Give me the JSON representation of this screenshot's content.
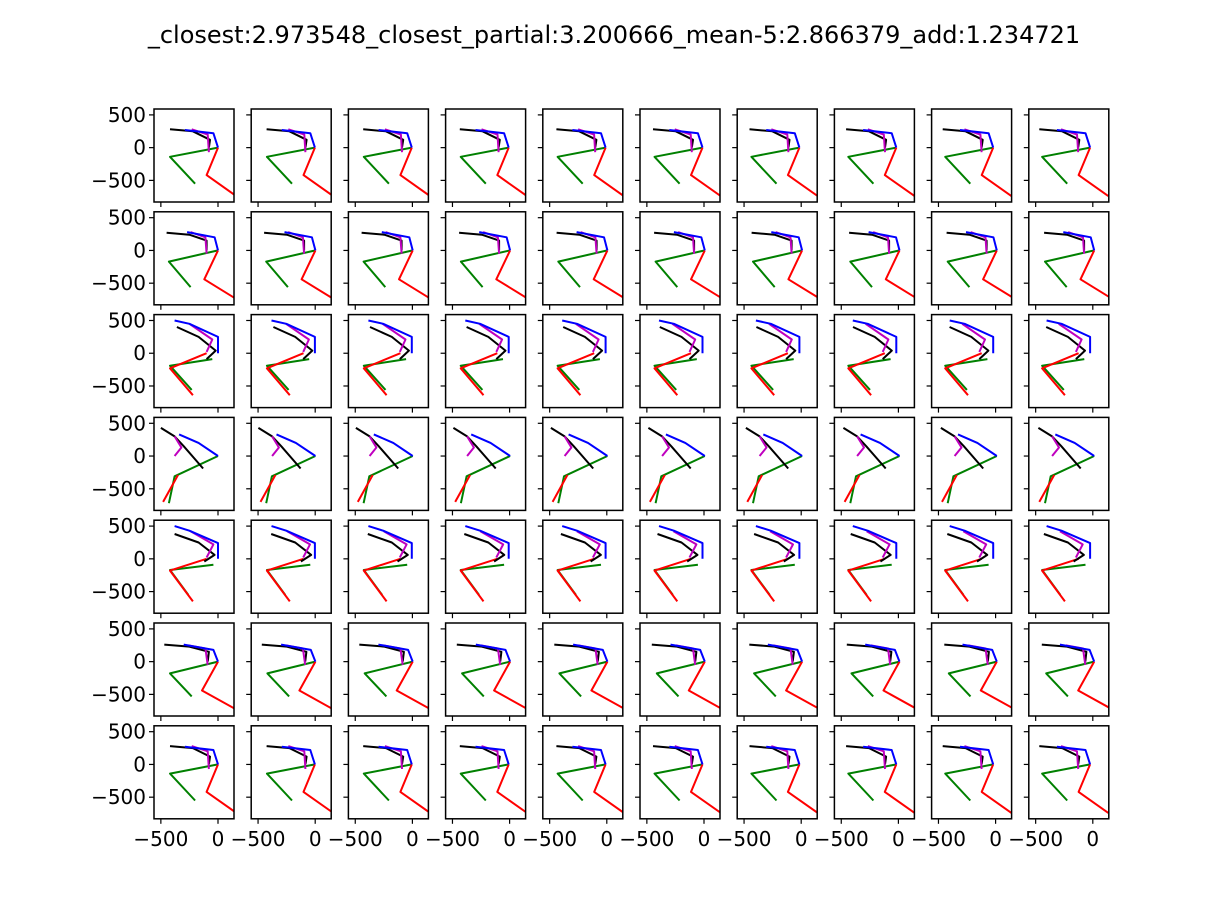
{
  "title": "_closest:2.973548_closest_partial:3.200666_mean-5:2.866379_add:1.234721",
  "chart_data": {
    "type": "line",
    "grid_rows": 7,
    "grid_cols": 10,
    "xlim": [
      -560,
      140
    ],
    "ylim": [
      -830,
      590
    ],
    "xticks": [
      {
        "value": -500,
        "label": "−500"
      },
      {
        "value": 0,
        "label": "0"
      }
    ],
    "yticks": [
      {
        "value": 500,
        "label": "500"
      },
      {
        "value": 0,
        "label": "0"
      },
      {
        "value": -500,
        "label": "−500"
      }
    ],
    "colors": {
      "left_leg": "#ff0000",
      "right_leg": "#008000",
      "torso": "#000000",
      "left_arm": "#bf00bf",
      "right_arm": "#0000ff"
    },
    "row_poses": [
      {
        "left_leg": [
          [
            0,
            0
          ],
          [
            -100,
            -420
          ],
          [
            160,
            -740
          ]
        ],
        "right_leg": [
          [
            0,
            0
          ],
          [
            -420,
            -140
          ],
          [
            -200,
            -550
          ]
        ],
        "torso": [
          [
            -80,
            0
          ],
          [
            -70,
            120
          ],
          [
            -220,
            250
          ],
          [
            -420,
            280
          ]
        ],
        "left_arm": [
          [
            -80,
            -70
          ],
          [
            -90,
            200
          ],
          [
            -230,
            280
          ]
        ],
        "right_arm": [
          [
            0,
            0
          ],
          [
            -40,
            220
          ],
          [
            -290,
            270
          ]
        ]
      },
      {
        "left_leg": [
          [
            0,
            0
          ],
          [
            -120,
            -440
          ],
          [
            150,
            -730
          ]
        ],
        "right_leg": [
          [
            0,
            0
          ],
          [
            -430,
            -170
          ],
          [
            -240,
            -560
          ]
        ],
        "torso": [
          [
            -100,
            0
          ],
          [
            -100,
            150
          ],
          [
            -250,
            240
          ],
          [
            -450,
            270
          ]
        ],
        "left_arm": [
          [
            -100,
            -50
          ],
          [
            -110,
            200
          ],
          [
            -240,
            280
          ]
        ],
        "right_arm": [
          [
            0,
            0
          ],
          [
            -30,
            200
          ],
          [
            -270,
            280
          ]
        ]
      },
      {
        "left_leg": [
          [
            -100,
            0
          ],
          [
            -420,
            -230
          ],
          [
            -220,
            -640
          ]
        ],
        "right_leg": [
          [
            -50,
            -90
          ],
          [
            -420,
            -190
          ],
          [
            -230,
            -560
          ]
        ],
        "torso": [
          [
            -100,
            -90
          ],
          [
            -20,
            40
          ],
          [
            -170,
            250
          ],
          [
            -360,
            400
          ]
        ],
        "left_arm": [
          [
            -100,
            20
          ],
          [
            -50,
            210
          ],
          [
            -250,
            450
          ]
        ],
        "right_arm": [
          [
            0,
            0
          ],
          [
            0,
            250
          ],
          [
            -250,
            450
          ],
          [
            -380,
            500
          ]
        ]
      },
      {
        "left_leg": [
          [
            -350,
            -290
          ],
          [
            -480,
            -700
          ]
        ],
        "right_leg": [
          [
            0,
            0
          ],
          [
            -380,
            -310
          ],
          [
            -430,
            -720
          ]
        ],
        "torso": [
          [
            -130,
            -190
          ],
          [
            -300,
            150
          ],
          [
            -380,
            300
          ],
          [
            -500,
            430
          ]
        ],
        "left_arm": [
          [
            -380,
            0
          ],
          [
            -320,
            130
          ],
          [
            -380,
            300
          ]
        ],
        "right_arm": [
          [
            0,
            0
          ],
          [
            -170,
            200
          ],
          [
            -340,
            330
          ]
        ]
      },
      {
        "left_leg": [
          [
            -100,
            0
          ],
          [
            -420,
            -180
          ],
          [
            -220,
            -650
          ]
        ],
        "right_leg": [
          [
            -40,
            -90
          ],
          [
            -420,
            -170
          ],
          [
            -260,
            -550
          ]
        ],
        "torso": [
          [
            -120,
            -40
          ],
          [
            -30,
            60
          ],
          [
            -170,
            250
          ],
          [
            -380,
            380
          ]
        ],
        "left_arm": [
          [
            -100,
            20
          ],
          [
            -40,
            220
          ],
          [
            -240,
            420
          ]
        ],
        "right_arm": [
          [
            0,
            0
          ],
          [
            0,
            240
          ],
          [
            -250,
            430
          ],
          [
            -380,
            500
          ]
        ]
      },
      {
        "left_leg": [
          [
            0,
            0
          ],
          [
            -140,
            -440
          ],
          [
            160,
            -730
          ]
        ],
        "right_leg": [
          [
            0,
            0
          ],
          [
            -420,
            -180
          ],
          [
            -230,
            -530
          ]
        ],
        "torso": [
          [
            -90,
            0
          ],
          [
            -80,
            150
          ],
          [
            -250,
            230
          ],
          [
            -470,
            260
          ]
        ],
        "left_arm": [
          [
            -90,
            -50
          ],
          [
            -110,
            200
          ],
          [
            -260,
            250
          ]
        ],
        "right_arm": [
          [
            0,
            0
          ],
          [
            -40,
            180
          ],
          [
            -300,
            260
          ]
        ]
      },
      {
        "left_leg": [
          [
            0,
            0
          ],
          [
            -100,
            -420
          ],
          [
            160,
            -740
          ]
        ],
        "right_leg": [
          [
            0,
            0
          ],
          [
            -420,
            -140
          ],
          [
            -200,
            -550
          ]
        ],
        "torso": [
          [
            -80,
            0
          ],
          [
            -70,
            120
          ],
          [
            -220,
            250
          ],
          [
            -420,
            280
          ]
        ],
        "left_arm": [
          [
            -80,
            -70
          ],
          [
            -90,
            200
          ],
          [
            -230,
            280
          ]
        ],
        "right_arm": [
          [
            0,
            0
          ],
          [
            -40,
            220
          ],
          [
            -290,
            270
          ]
        ]
      }
    ],
    "col_variation_dx": 80
  }
}
